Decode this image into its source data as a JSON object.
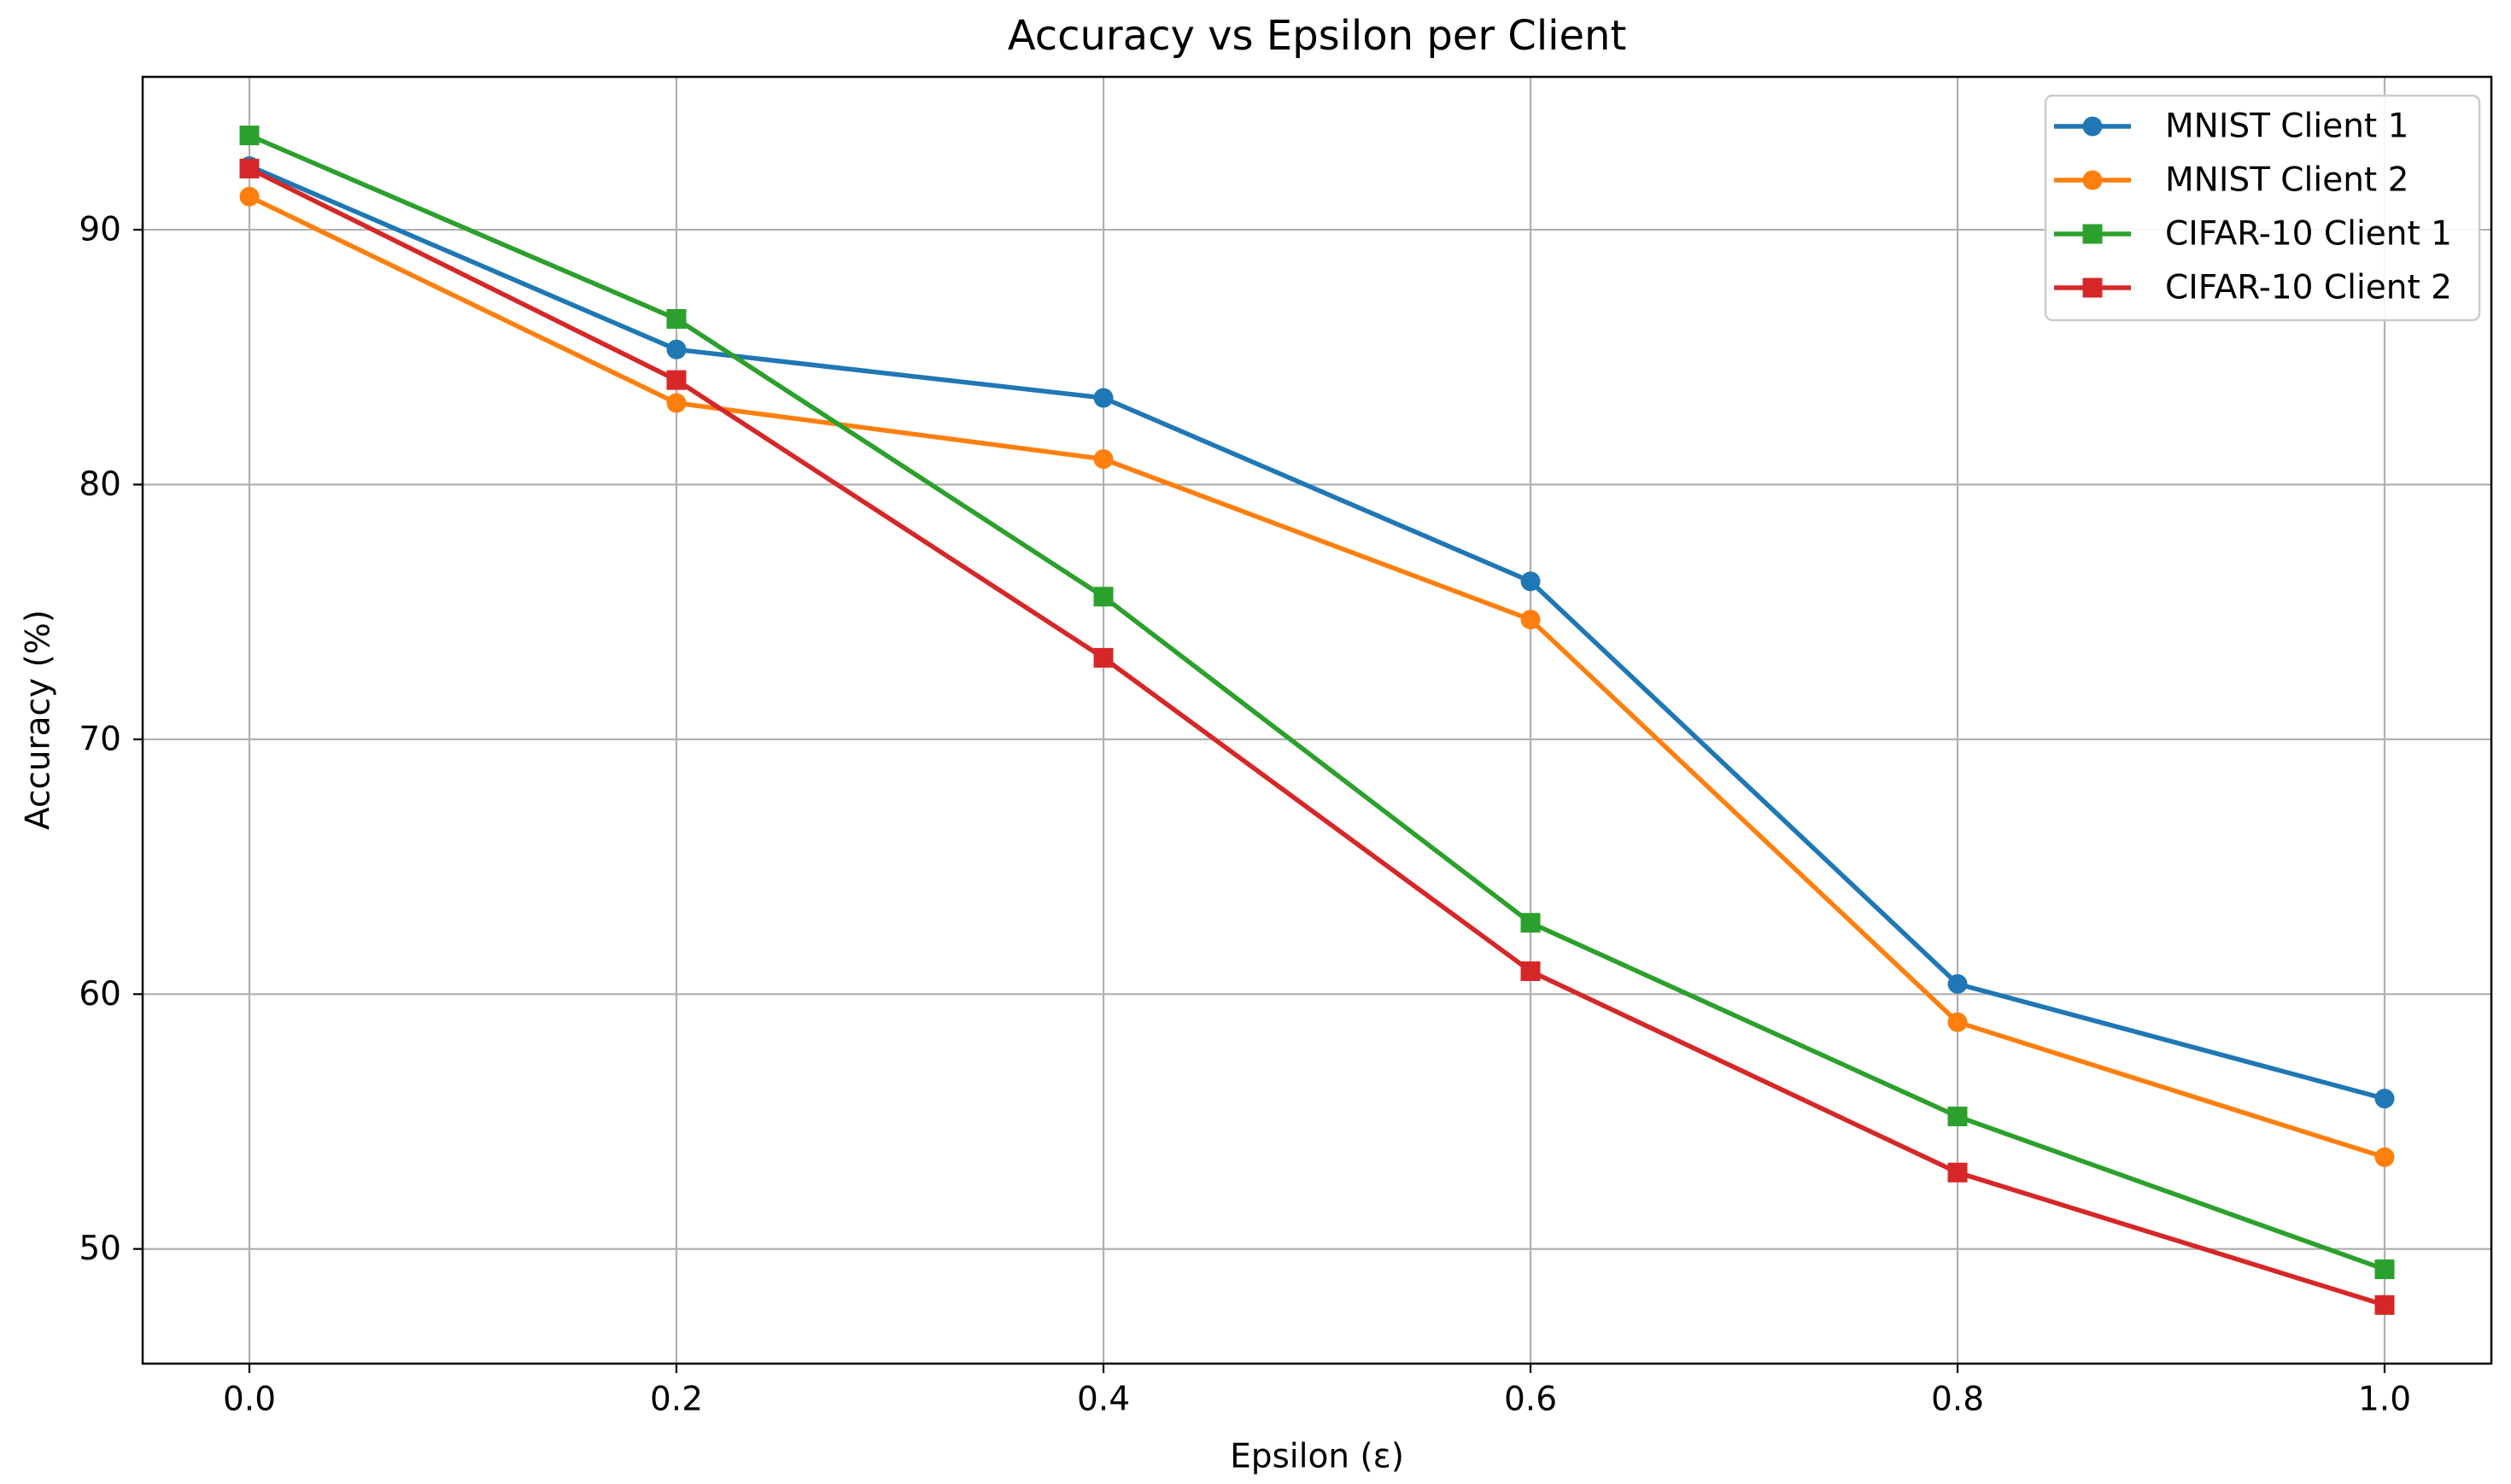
{
  "page": {
    "background": "#ffffff"
  },
  "chart_data": {
    "type": "line",
    "title": "Accuracy vs Epsilon per Client",
    "xlabel": "Epsilon (ε)",
    "ylabel": "Accuracy (%)",
    "x": [
      0.0,
      0.2,
      0.4,
      0.6,
      0.8,
      1.0
    ],
    "x_tick_labels": [
      "0.0",
      "0.2",
      "0.4",
      "0.6",
      "0.8",
      "1.0"
    ],
    "y_tick_values": [
      50,
      60,
      70,
      80,
      90
    ],
    "y_tick_labels": [
      "50",
      "60",
      "70",
      "80",
      "90"
    ],
    "xlim": [
      -0.05,
      1.05
    ],
    "ylim": [
      45.5,
      96.0
    ],
    "grid": true,
    "grid_color": "#b0b0b0",
    "axis_color": "#000000",
    "legend": {
      "position": "upper right",
      "border_color": "#cccccc",
      "background": "#ffffff",
      "entries": [
        "MNIST Client 1",
        "MNIST Client 2",
        "CIFAR-10 Client 1",
        "CIFAR-10 Client 2"
      ]
    },
    "series": [
      {
        "name": "MNIST Client 1",
        "color": "#1f77b4",
        "marker": "circle",
        "values": [
          92.5,
          85.3,
          83.4,
          76.2,
          60.4,
          55.9
        ]
      },
      {
        "name": "MNIST Client 2",
        "color": "#ff7f0e",
        "marker": "circle",
        "values": [
          91.3,
          83.2,
          81.0,
          74.7,
          58.9,
          53.6
        ]
      },
      {
        "name": "CIFAR-10 Client 1",
        "color": "#2ca02c",
        "marker": "square",
        "values": [
          93.7,
          86.5,
          75.6,
          62.8,
          55.2,
          49.2
        ]
      },
      {
        "name": "CIFAR-10 Client 2",
        "color": "#d62728",
        "marker": "square",
        "values": [
          92.4,
          84.1,
          73.2,
          60.9,
          53.0,
          47.8
        ]
      }
    ]
  }
}
